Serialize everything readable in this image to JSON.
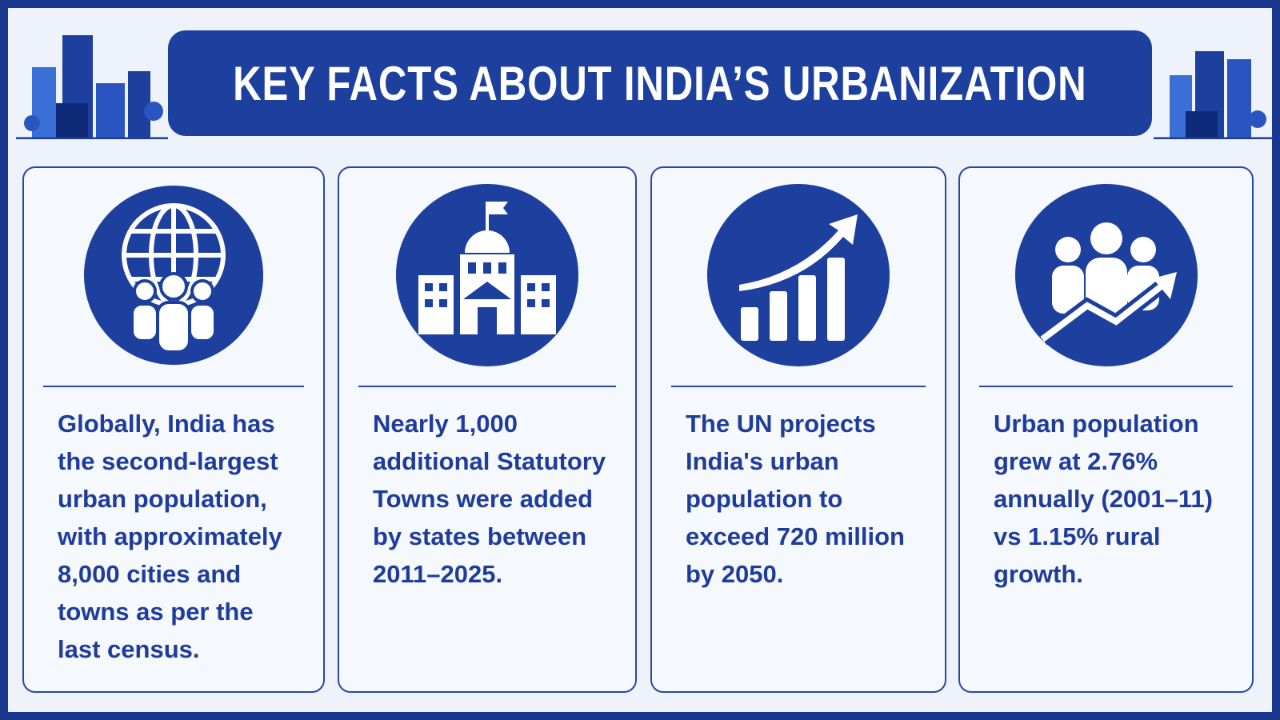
{
  "title": "KEY FACTS ABOUT INDIA’S URBANIZATION",
  "cards": [
    {
      "text": "Globally, India has the second-largest urban population, with approximately 8,000 cities and towns as per the last census."
    },
    {
      "text": "Nearly 1,000 additional Statutory Towns were added by states between 2011–2025."
    },
    {
      "text": "The UN projects India's urban population to exceed 720 million by 2050."
    },
    {
      "text": "Urban population grew at 2.76% annually (2001–11) vs 1.15% rural growth."
    }
  ]
}
